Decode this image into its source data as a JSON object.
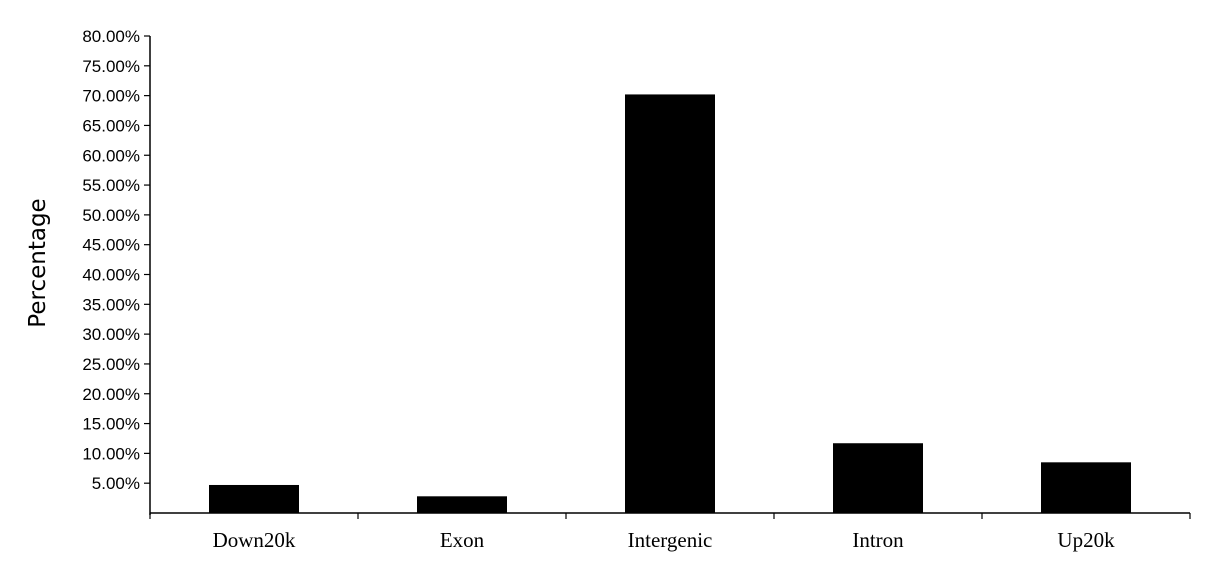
{
  "chart_data": {
    "type": "bar",
    "title": "",
    "xlabel": "",
    "ylabel": "Percentage",
    "categories": [
      "Down20k",
      "Exon",
      "Intergenic",
      "Intron",
      "Up20k"
    ],
    "values": [
      4.7,
      2.8,
      70.2,
      11.7,
      8.5
    ],
    "ylim": [
      0,
      80
    ],
    "yticks": [
      5,
      10,
      15,
      20,
      25,
      30,
      35,
      40,
      45,
      50,
      55,
      60,
      65,
      70,
      75,
      80
    ],
    "ytick_labels": [
      "5.00%",
      "10.00%",
      "15.00%",
      "20.00%",
      "25.00%",
      "30.00%",
      "35.00%",
      "40.00%",
      "45.00%",
      "50.00%",
      "55.00%",
      "60.00%",
      "65.00%",
      "70.00%",
      "75.00%",
      "80.00%"
    ],
    "grid": false,
    "legend": "none",
    "bar_color": "#000000"
  }
}
